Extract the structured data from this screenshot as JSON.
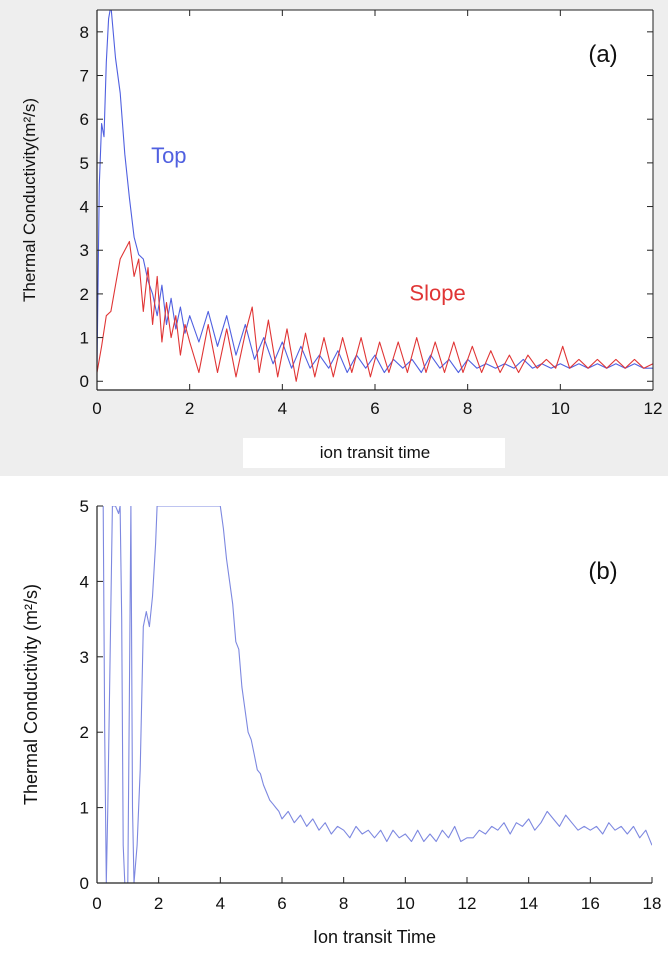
{
  "chart_data": [
    {
      "type": "line",
      "panel_label": "(a)",
      "xlabel": "ion transit time",
      "ylabel": "Thermal Conductivity(m²/s)",
      "xlim": [
        0,
        12
      ],
      "ylim": [
        -0.2,
        8.5
      ],
      "x_ticks": [
        0,
        2,
        4,
        6,
        8,
        10,
        12
      ],
      "y_ticks": [
        0,
        1,
        2,
        3,
        4,
        5,
        6,
        7,
        8
      ],
      "grid": false,
      "series": [
        {
          "name": "Top",
          "color": "#5060e0",
          "x": [
            0,
            0.05,
            0.1,
            0.15,
            0.2,
            0.25,
            0.3,
            0.4,
            0.5,
            0.6,
            0.7,
            0.8,
            0.9,
            1.0,
            1.1,
            1.2,
            1.3,
            1.4,
            1.5,
            1.6,
            1.7,
            1.8,
            1.9,
            2.0,
            2.2,
            2.4,
            2.6,
            2.8,
            3.0,
            3.2,
            3.4,
            3.6,
            3.8,
            4.0,
            4.2,
            4.4,
            4.6,
            4.8,
            5.0,
            5.2,
            5.4,
            5.6,
            5.8,
            6.0,
            6.2,
            6.4,
            6.6,
            6.8,
            7.0,
            7.2,
            7.4,
            7.6,
            7.8,
            8.0,
            8.2,
            8.4,
            8.6,
            8.8,
            9.0,
            9.2,
            9.4,
            9.6,
            9.8,
            10.0,
            10.2,
            10.4,
            10.6,
            10.8,
            11.0,
            11.2,
            11.4,
            11.6,
            11.8,
            12.0
          ],
          "y": [
            0.3,
            4.5,
            5.9,
            5.6,
            7.3,
            8.3,
            8.6,
            7.4,
            6.6,
            5.2,
            4.2,
            3.3,
            2.9,
            2.8,
            2.3,
            2.0,
            1.5,
            2.2,
            1.3,
            1.9,
            1.2,
            1.7,
            1.1,
            1.5,
            0.9,
            1.6,
            0.8,
            1.5,
            0.6,
            1.3,
            0.5,
            1.0,
            0.4,
            0.9,
            0.3,
            0.8,
            0.3,
            0.6,
            0.3,
            0.7,
            0.2,
            0.6,
            0.3,
            0.6,
            0.2,
            0.5,
            0.3,
            0.5,
            0.2,
            0.6,
            0.3,
            0.5,
            0.2,
            0.5,
            0.3,
            0.4,
            0.3,
            0.4,
            0.3,
            0.5,
            0.3,
            0.4,
            0.3,
            0.4,
            0.3,
            0.4,
            0.3,
            0.4,
            0.3,
            0.4,
            0.3,
            0.4,
            0.3,
            0.3
          ]
        },
        {
          "name": "Slope",
          "color": "#e03535",
          "x": [
            0,
            0.1,
            0.2,
            0.3,
            0.4,
            0.5,
            0.6,
            0.7,
            0.8,
            0.9,
            1.0,
            1.1,
            1.2,
            1.3,
            1.4,
            1.5,
            1.6,
            1.7,
            1.8,
            1.9,
            2.0,
            2.2,
            2.4,
            2.6,
            2.8,
            3.0,
            3.2,
            3.35,
            3.5,
            3.7,
            3.9,
            4.1,
            4.3,
            4.5,
            4.7,
            4.9,
            5.1,
            5.3,
            5.5,
            5.7,
            5.9,
            6.1,
            6.3,
            6.5,
            6.7,
            6.9,
            7.1,
            7.3,
            7.5,
            7.7,
            7.9,
            8.1,
            8.3,
            8.5,
            8.7,
            8.9,
            9.1,
            9.3,
            9.5,
            9.7,
            9.9,
            10.05,
            10.2,
            10.4,
            10.6,
            10.8,
            11.0,
            11.2,
            11.4,
            11.6,
            11.8,
            12.0
          ],
          "y": [
            0.2,
            0.8,
            1.5,
            1.6,
            2.2,
            2.8,
            3.0,
            3.2,
            2.4,
            2.8,
            1.6,
            2.6,
            1.3,
            2.4,
            0.9,
            1.8,
            1.0,
            1.5,
            0.6,
            1.3,
            0.9,
            0.2,
            1.3,
            0.2,
            1.2,
            0.1,
            1.1,
            1.7,
            0.2,
            1.4,
            0.1,
            1.2,
            0.0,
            1.1,
            0.1,
            1.0,
            0.1,
            1.0,
            0.2,
            1.0,
            0.1,
            0.9,
            0.2,
            0.9,
            0.2,
            1.0,
            0.2,
            0.9,
            0.2,
            0.9,
            0.2,
            0.8,
            0.2,
            0.7,
            0.2,
            0.6,
            0.2,
            0.6,
            0.3,
            0.5,
            0.3,
            0.8,
            0.3,
            0.5,
            0.3,
            0.5,
            0.3,
            0.5,
            0.3,
            0.5,
            0.3,
            0.4
          ]
        }
      ],
      "annotations": [
        {
          "text": "Top",
          "x": 1.55,
          "y": 5.0,
          "color": "#5060e0"
        },
        {
          "text": "Slope",
          "x": 7.35,
          "y": 1.85,
          "color": "#e03535"
        }
      ]
    },
    {
      "type": "line",
      "panel_label": "(b)",
      "xlabel": "Ion transit Time",
      "ylabel": "Thermal Conductivity (m²/s)",
      "xlim": [
        0,
        18
      ],
      "ylim": [
        0,
        5
      ],
      "x_ticks": [
        0,
        2,
        4,
        6,
        8,
        10,
        12,
        14,
        16,
        18
      ],
      "y_ticks": [
        0,
        1,
        2,
        3,
        4,
        5
      ],
      "grid": false,
      "series": [
        {
          "color": "#7d88e0",
          "x": [
            0.2,
            0.25,
            0.3,
            0.35,
            0.5,
            0.6,
            0.7,
            0.75,
            0.8,
            0.85,
            0.9,
            1.0,
            1.05,
            1.1,
            1.15,
            1.2,
            1.3,
            1.4,
            1.5,
            1.6,
            1.7,
            1.8,
            1.9,
            1.95,
            2.0,
            4.0,
            4.1,
            4.2,
            4.3,
            4.4,
            4.5,
            4.6,
            4.7,
            4.8,
            4.9,
            5.0,
            5.1,
            5.2,
            5.3,
            5.4,
            5.5,
            5.6,
            5.7,
            5.8,
            5.9,
            6.0,
            6.2,
            6.4,
            6.6,
            6.8,
            7.0,
            7.2,
            7.4,
            7.6,
            7.8,
            8.0,
            8.2,
            8.4,
            8.6,
            8.8,
            9.0,
            9.2,
            9.4,
            9.6,
            9.8,
            10.0,
            10.2,
            10.4,
            10.6,
            10.8,
            11.0,
            11.2,
            11.4,
            11.6,
            11.8,
            12.0,
            12.2,
            12.4,
            12.6,
            12.8,
            13.0,
            13.2,
            13.4,
            13.6,
            13.8,
            14.0,
            14.2,
            14.4,
            14.6,
            14.8,
            15.0,
            15.2,
            15.4,
            15.6,
            15.8,
            16.0,
            16.2,
            16.4,
            16.6,
            16.8,
            17.0,
            17.2,
            17.4,
            17.6,
            17.8,
            18.0
          ],
          "y": [
            5.0,
            2.0,
            0.0,
            1.0,
            5.0,
            5.0,
            4.9,
            5.0,
            3.5,
            0.5,
            0.0,
            0.0,
            2.5,
            5.0,
            1.0,
            0.0,
            0.5,
            1.5,
            3.4,
            3.6,
            3.4,
            3.8,
            4.5,
            5.0,
            5.0,
            5.0,
            4.7,
            4.3,
            4.0,
            3.7,
            3.2,
            3.1,
            2.6,
            2.3,
            2.0,
            1.9,
            1.7,
            1.5,
            1.45,
            1.3,
            1.2,
            1.1,
            1.05,
            1.0,
            0.95,
            0.85,
            0.95,
            0.8,
            0.9,
            0.75,
            0.85,
            0.7,
            0.8,
            0.65,
            0.75,
            0.7,
            0.6,
            0.75,
            0.65,
            0.7,
            0.6,
            0.7,
            0.55,
            0.7,
            0.6,
            0.65,
            0.55,
            0.7,
            0.55,
            0.65,
            0.55,
            0.7,
            0.6,
            0.75,
            0.55,
            0.6,
            0.6,
            0.7,
            0.65,
            0.75,
            0.7,
            0.8,
            0.65,
            0.8,
            0.75,
            0.85,
            0.7,
            0.8,
            0.95,
            0.85,
            0.75,
            0.9,
            0.8,
            0.7,
            0.75,
            0.7,
            0.75,
            0.65,
            0.8,
            0.7,
            0.75,
            0.65,
            0.75,
            0.6,
            0.7,
            0.5
          ]
        }
      ]
    }
  ]
}
